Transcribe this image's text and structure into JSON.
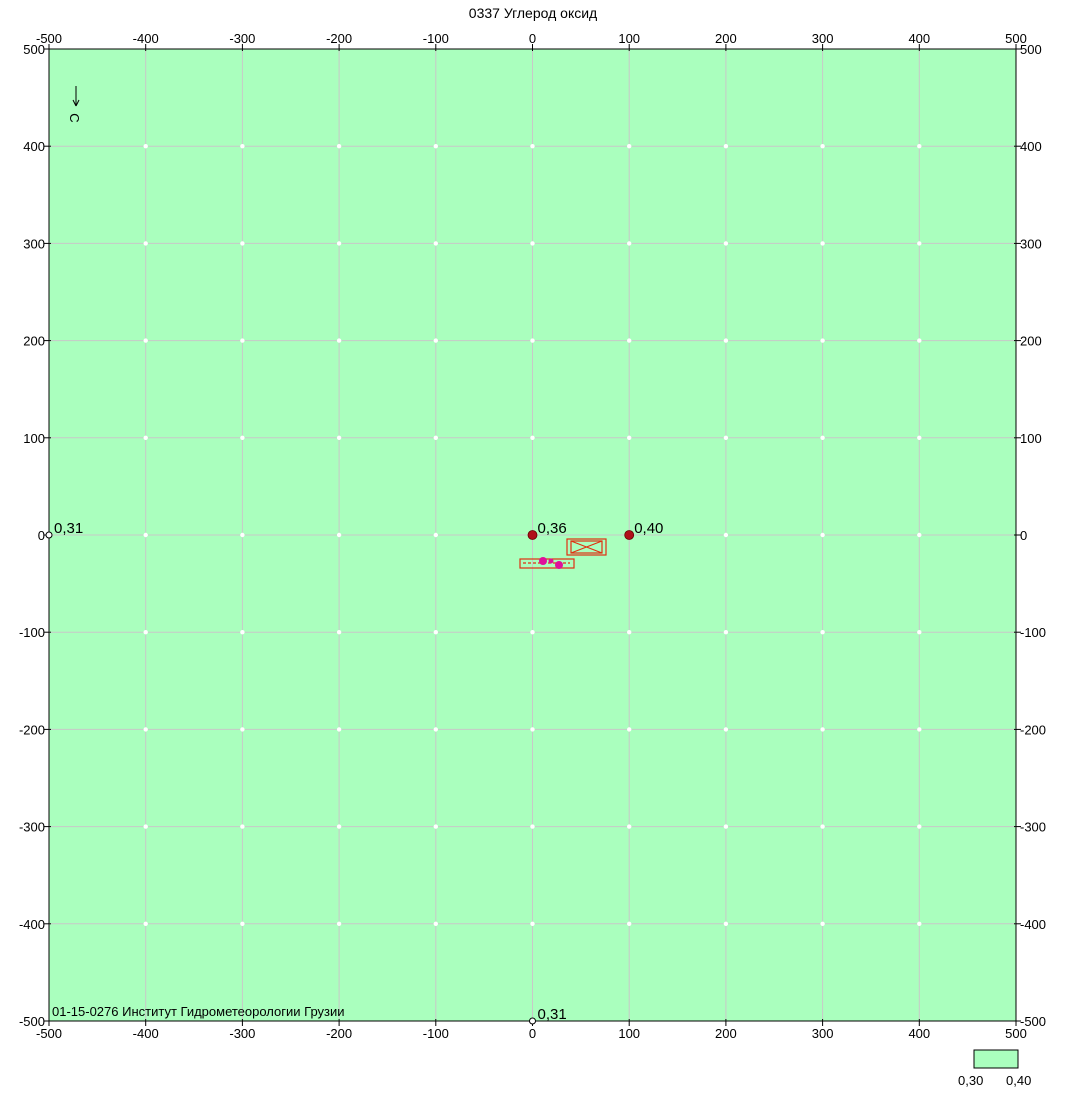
{
  "title": "0337 Углерод оксид",
  "footer_text": "01-15-0276 Институт Гидрометеорологии Грузии",
  "map": {
    "x_range": [
      -500,
      500
    ],
    "y_range": [
      -500,
      500
    ],
    "grid_step": 100,
    "x_tick_labels": [
      "-500",
      "-400",
      "-300",
      "-200",
      "-100",
      "0",
      "100",
      "200",
      "300",
      "400",
      "500"
    ],
    "y_tick_labels": [
      "500",
      "400",
      "300",
      "200",
      "100",
      "0",
      "-100",
      "-200",
      "-300",
      "-400",
      "-500"
    ],
    "compass_letter": "С",
    "background_color": "#aaffbe",
    "grid_color": "#c8c8c8",
    "points": [
      {
        "x": 0,
        "y": 0,
        "label": "0,36",
        "color": "#b0101a"
      },
      {
        "x": 100,
        "y": 0,
        "label": "0,40",
        "color": "#b0101a"
      },
      {
        "x": -500,
        "y": 0,
        "label": "0,31",
        "color": "none"
      },
      {
        "x": 0,
        "y": -500,
        "label": "0,31",
        "color": "none"
      }
    ],
    "sources_color": "#e03010",
    "emission_points_color": "#e0109a"
  },
  "legend": {
    "labels": [
      "0,30",
      "0,40"
    ],
    "fill": "#aaffbe"
  }
}
